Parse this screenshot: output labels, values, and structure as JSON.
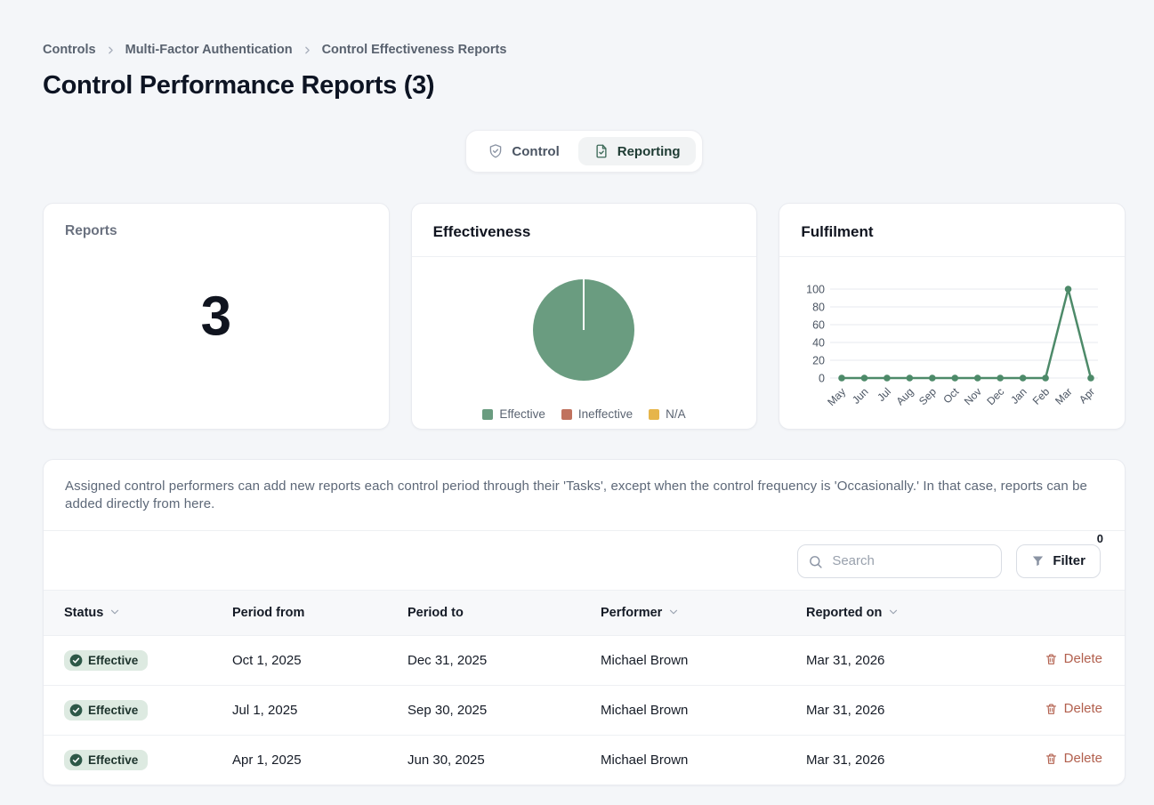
{
  "breadcrumb": {
    "items": [
      "Controls",
      "Multi-Factor Authentication",
      "Control Effectiveness Reports"
    ]
  },
  "page": {
    "title": "Control Performance Reports (3)"
  },
  "tabs": [
    {
      "label": "Control",
      "icon": "shield-check-icon",
      "active": false
    },
    {
      "label": "Reporting",
      "icon": "file-check-icon",
      "active": true
    }
  ],
  "cards": {
    "reports": {
      "title": "Reports",
      "value": "3"
    },
    "effectiveness": {
      "title": "Effectiveness"
    },
    "fulfilment": {
      "title": "Fulfilment"
    }
  },
  "chart_data": [
    {
      "type": "pie",
      "title": "Effectiveness",
      "slices": [
        {
          "label": "Effective",
          "value": 100,
          "color": "#6a9c80"
        },
        {
          "label": "Ineffective",
          "value": 0,
          "color": "#c0725e"
        },
        {
          "label": "N/A",
          "value": 0,
          "color": "#e6b54a"
        }
      ],
      "legend_position": "bottom"
    },
    {
      "type": "line",
      "title": "Fulfilment",
      "x": [
        "May",
        "Jun",
        "Jul",
        "Aug",
        "Sep",
        "Oct",
        "Nov",
        "Dec",
        "Jan",
        "Feb",
        "Mar",
        "Apr"
      ],
      "series": [
        {
          "name": "Fulfilment",
          "values": [
            0,
            0,
            0,
            0,
            0,
            0,
            0,
            0,
            0,
            0,
            100,
            0
          ],
          "color": "#4d8a69"
        }
      ],
      "yticks": [
        0,
        20,
        40,
        60,
        80,
        100
      ],
      "ylim": [
        0,
        100
      ],
      "grid": true,
      "xlabel": "",
      "ylabel": ""
    }
  ],
  "info_banner": {
    "text": "Assigned control performers can add new reports each control period through their 'Tasks', except when the control frequency is 'Occasionally.' In that case, reports can be added directly from here."
  },
  "toolbar": {
    "search_placeholder": "Search",
    "filter_label": "Filter",
    "filter_count": "0"
  },
  "table": {
    "columns": [
      {
        "label": "Status",
        "sortable": true
      },
      {
        "label": "Period from",
        "sortable": false
      },
      {
        "label": "Period to",
        "sortable": false
      },
      {
        "label": "Performer",
        "sortable": true
      },
      {
        "label": "Reported on",
        "sortable": true
      },
      {
        "label": "",
        "sortable": false
      }
    ],
    "rows": [
      {
        "status": "Effective",
        "period_from": "Oct 1, 2025",
        "period_to": "Dec 31, 2025",
        "performer": "Michael Brown",
        "reported_on": "Mar 31, 2026",
        "action": "Delete"
      },
      {
        "status": "Effective",
        "period_from": "Jul 1, 2025",
        "period_to": "Sep 30, 2025",
        "performer": "Michael Brown",
        "reported_on": "Mar 31, 2026",
        "action": "Delete"
      },
      {
        "status": "Effective",
        "period_from": "Apr 1, 2025",
        "period_to": "Jun 30, 2025",
        "performer": "Michael Brown",
        "reported_on": "Mar 31, 2026",
        "action": "Delete"
      }
    ]
  },
  "colors": {
    "page_bg": "#f4f6f9",
    "effective_green": "#6a9c80",
    "ineffective_red": "#c0725e",
    "na_yellow": "#e6b54a",
    "line_green": "#4d8a69",
    "badge_bg": "#ddeae1",
    "badge_icon": "#2d5847",
    "delete_red": "#b2604e"
  }
}
